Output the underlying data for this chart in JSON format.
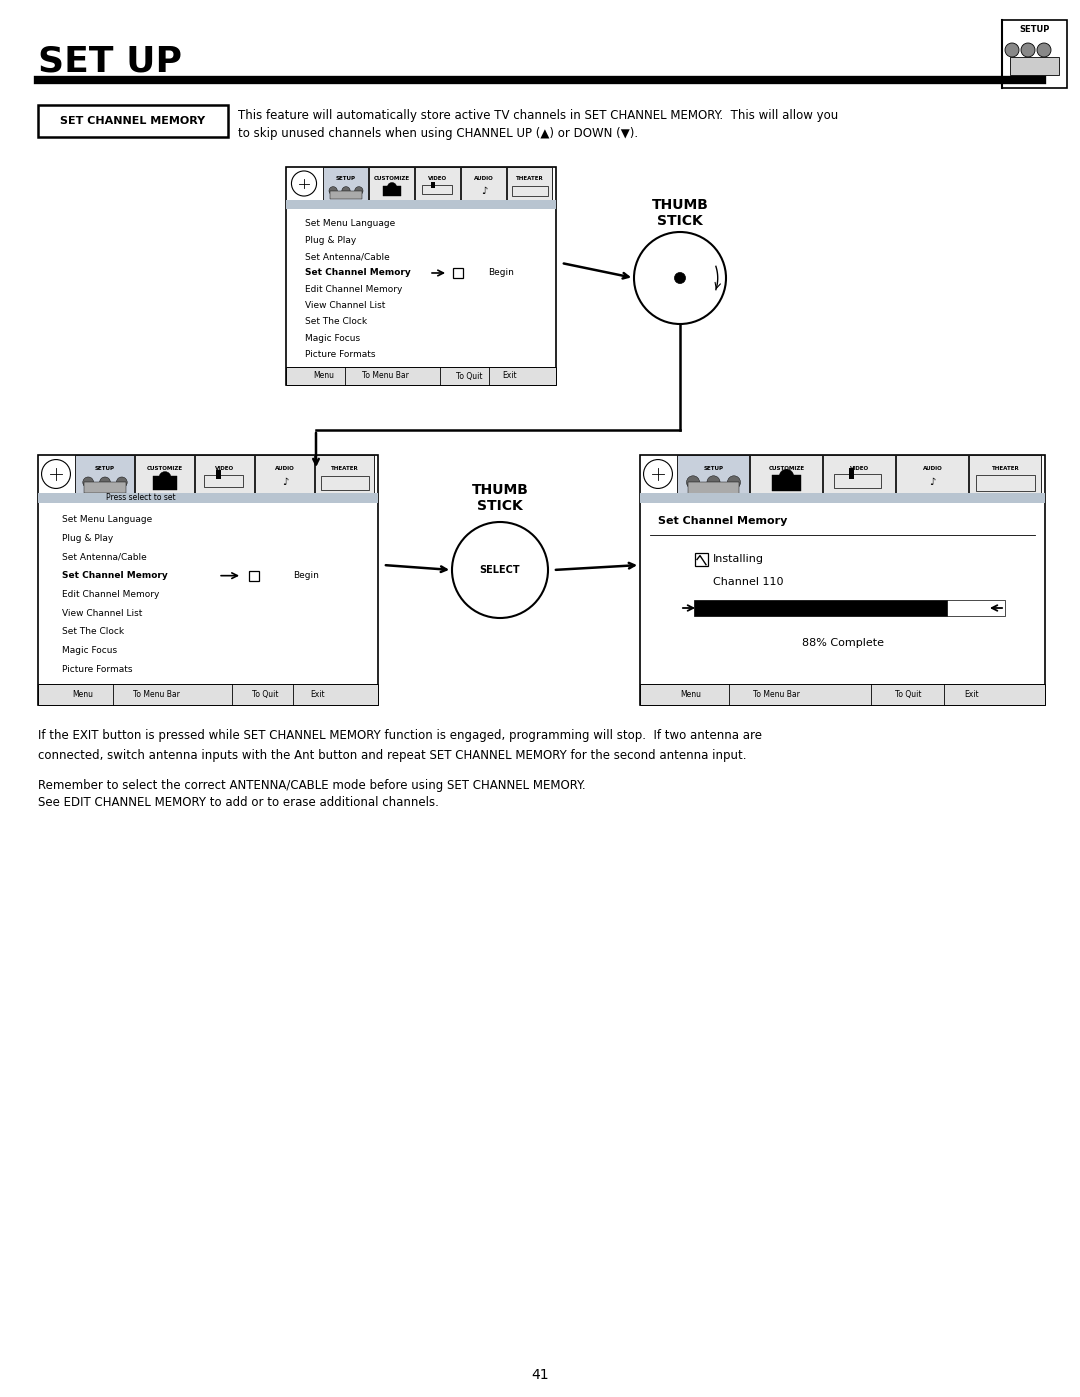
{
  "title": "SET UP",
  "page_number": "41",
  "section_label": "SET CHANNEL MEMORY",
  "section_text_line1": "This feature will automatically store active TV channels in SET CHANNEL MEMORY.  This will allow you",
  "section_text_line2": "to skip unused channels when using CHANNEL UP (▲) or DOWN (▼).",
  "menu_items": [
    "Set Menu Language",
    "Plug & Play",
    "Set Antenna/Cable",
    "Set Channel Memory",
    "Edit Channel Memory",
    "View Channel List",
    "Set The Clock",
    "Magic Focus",
    "Picture Formats"
  ],
  "menu_bold_item": "Set Channel Memory",
  "menu_bar_labels": [
    "Menu",
    "To Menu Bar",
    "To Quit",
    "Exit"
  ],
  "bottom_text1": "If the EXIT button is pressed while SET CHANNEL MEMORY function is engaged, programming will stop.  If two antenna are",
  "bottom_text2": "connected, switch antenna inputs with the Ant button and repeat SET CHANNEL MEMORY for the second antenna input.",
  "bottom_text3": "Remember to select the correct ANTENNA/CABLE mode before using SET CHANNEL MEMORY.",
  "bottom_text4": "See EDIT CHANNEL MEMORY to add or to erase additional channels.",
  "right_panel_title": "Set Channel Memory",
  "right_panel_progress": "88% Complete",
  "bg_color": "#ffffff",
  "thumb_stick_label_top": "THUMB\nSTICK",
  "thumb_stick_label_bot": "THUMB\nSTICK",
  "select_label": "SELECT",
  "tab_names": [
    "SETUP",
    "CUSTOMIZE",
    "VIDEO",
    "AUDIO",
    "THEATER"
  ],
  "tab_active_bg": "#c8d0dc",
  "tab_inactive_bg": "#e8e8e8",
  "bar_bg": "#b8c4d0",
  "btm_bar_bg": "#e0e0e0"
}
